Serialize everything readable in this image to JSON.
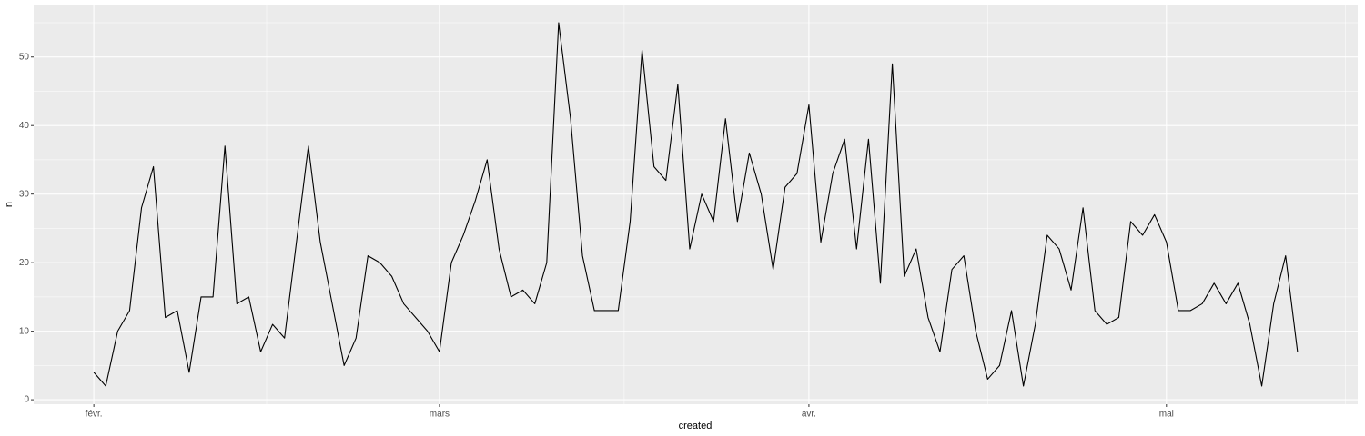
{
  "chart_data": {
    "type": "line",
    "x_label": "created",
    "y_label": "n",
    "categories": [
      "févr.",
      null,
      null,
      null,
      null,
      null,
      null,
      null,
      null,
      null,
      null,
      null,
      null,
      null,
      null,
      null,
      null,
      null,
      null,
      null,
      null,
      null,
      null,
      null,
      null,
      null,
      null,
      null,
      null,
      "mars",
      null,
      null,
      null,
      null,
      null,
      null,
      null,
      null,
      null,
      null,
      null,
      null,
      null,
      null,
      null,
      null,
      null,
      null,
      null,
      null,
      null,
      null,
      null,
      null,
      null,
      null,
      null,
      null,
      null,
      null,
      "avr.",
      null,
      null,
      null,
      null,
      null,
      null,
      null,
      null,
      null,
      null,
      null,
      null,
      null,
      null,
      null,
      null,
      null,
      null,
      null,
      null,
      null,
      null,
      null,
      null,
      null,
      null,
      null,
      null,
      null,
      "mai",
      null,
      null,
      null,
      null,
      null,
      null,
      null,
      null,
      null,
      null,
      null
    ],
    "values": [
      4,
      2,
      10,
      13,
      28,
      34,
      12,
      13,
      4,
      15,
      15,
      37,
      14,
      15,
      7,
      11,
      9,
      23,
      37,
      23,
      14,
      5,
      9,
      21,
      20,
      18,
      14,
      12,
      10,
      7,
      20,
      24,
      29,
      35,
      22,
      15,
      16,
      14,
      20,
      55,
      41,
      21,
      13,
      13,
      13,
      26,
      51,
      34,
      32,
      46,
      22,
      30,
      26,
      41,
      26,
      36,
      30,
      19,
      31,
      33,
      43,
      23,
      33,
      38,
      22,
      38,
      17,
      49,
      18,
      22,
      12,
      7,
      19,
      21,
      10,
      3,
      5,
      13,
      2,
      11,
      24,
      22,
      16,
      28,
      13,
      11,
      12,
      26,
      24,
      27,
      23,
      13,
      13,
      14,
      17,
      14,
      17,
      11,
      2,
      14,
      21,
      7
    ],
    "color": "#000000",
    "ylim": [
      -0.65,
      57.65
    ],
    "yticks": [
      0,
      10,
      20,
      30,
      40,
      50
    ],
    "grid": true
  }
}
